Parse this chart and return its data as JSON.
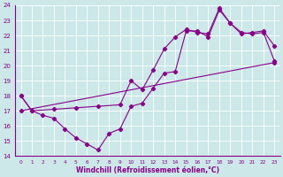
{
  "xlabel": "Windchill (Refroidissement éolien,°C)",
  "xlim": [
    -0.5,
    23.5
  ],
  "ylim": [
    14,
    24
  ],
  "xticks": [
    0,
    1,
    2,
    3,
    4,
    5,
    6,
    7,
    8,
    9,
    10,
    11,
    12,
    13,
    14,
    15,
    16,
    17,
    18,
    19,
    20,
    21,
    22,
    23
  ],
  "yticks": [
    14,
    15,
    16,
    17,
    18,
    19,
    20,
    21,
    22,
    23,
    24
  ],
  "bg_color": "#cce8e8",
  "grid_color": "#b0d0d0",
  "line_color": "#880088",
  "line1_x": [
    0,
    1,
    2,
    3,
    4,
    5,
    6,
    7,
    8,
    9,
    10,
    11,
    12,
    13,
    14,
    15,
    16,
    17,
    18,
    19,
    20,
    21,
    22,
    23
  ],
  "line1_y": [
    18,
    17,
    16.7,
    16.5,
    15.8,
    15.2,
    14.8,
    14.4,
    15.5,
    15.8,
    17.3,
    17.5,
    18.5,
    19.5,
    19.6,
    22.3,
    22.3,
    21.9,
    23.7,
    22.8,
    22.1,
    22.2,
    22.3,
    21.3
  ],
  "line2_x": [
    0,
    1,
    3,
    5,
    7,
    9,
    10,
    11,
    12,
    13,
    14,
    15,
    16,
    17,
    18,
    19,
    20,
    21,
    22,
    23
  ],
  "line2_y": [
    18,
    17,
    17.1,
    17.2,
    17.3,
    17.4,
    19.0,
    18.4,
    19.7,
    21.1,
    21.9,
    22.4,
    22.2,
    22.1,
    23.8,
    22.8,
    22.2,
    22.1,
    22.2,
    20.3
  ],
  "line3_x": [
    0,
    23
  ],
  "line3_y": [
    17.0,
    20.2
  ]
}
